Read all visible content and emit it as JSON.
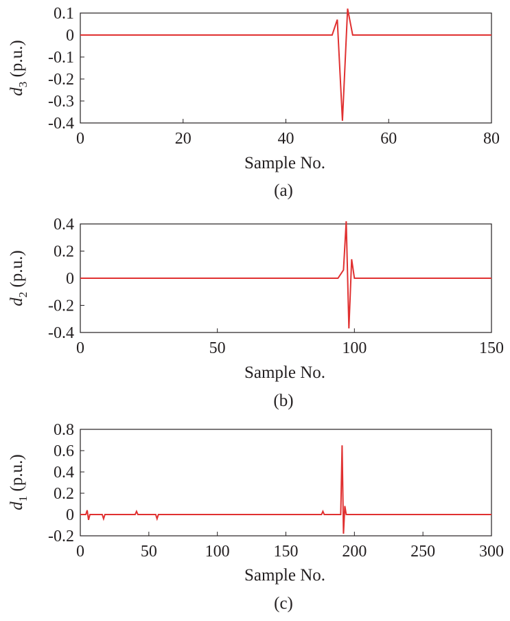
{
  "chart_data": [
    {
      "type": "line",
      "panel": "(a)",
      "ylabel_symbol": "d",
      "ylabel_subscript": "3",
      "ylabel_unit": " (p.u.)",
      "xlabel": "Sample No.",
      "xlim": [
        0,
        80
      ],
      "ylim": [
        -0.4,
        0.1
      ],
      "xticks": [
        0,
        20,
        40,
        60,
        80
      ],
      "yticks": [
        0.1,
        0,
        -0.1,
        -0.2,
        -0.3,
        -0.4
      ],
      "line_color": "#e03030",
      "x": [
        0,
        49,
        50,
        51,
        52,
        53,
        80
      ],
      "y": [
        0,
        0,
        0.07,
        -0.39,
        0.12,
        0,
        0
      ]
    },
    {
      "type": "line",
      "panel": "(b)",
      "ylabel_symbol": "d",
      "ylabel_subscript": "2",
      "ylabel_unit": " (p.u.)",
      "xlabel": "Sample No.",
      "xlim": [
        0,
        150
      ],
      "ylim": [
        -0.4,
        0.4
      ],
      "xticks": [
        0,
        50,
        100,
        150
      ],
      "yticks": [
        0.4,
        0.2,
        0,
        -0.2,
        -0.4
      ],
      "line_color": "#e03030",
      "x": [
        0,
        94,
        96,
        97,
        98,
        99,
        100,
        150
      ],
      "y": [
        0,
        0,
        0.06,
        0.42,
        -0.37,
        0.14,
        0,
        0
      ]
    },
    {
      "type": "line",
      "panel": "(c)",
      "ylabel_symbol": "d",
      "ylabel_subscript": "1",
      "ylabel_unit": " (p.u.)",
      "xlabel": "Sample No.",
      "xlim": [
        0,
        300
      ],
      "ylim": [
        -0.2,
        0.8
      ],
      "xticks": [
        0,
        50,
        100,
        150,
        200,
        250,
        300
      ],
      "yticks": [
        0.8,
        0.6,
        0.4,
        0.2,
        0,
        -0.2
      ],
      "line_color": "#e03030",
      "x": [
        0,
        4,
        5,
        6,
        7,
        16,
        17,
        18,
        40,
        41,
        42,
        55,
        56,
        57,
        176,
        177,
        178,
        190,
        191,
        192,
        193,
        194,
        300
      ],
      "y": [
        0,
        0,
        0.04,
        -0.05,
        0,
        0,
        -0.04,
        0,
        0,
        0.03,
        0,
        0,
        -0.04,
        0,
        0,
        0.03,
        0,
        0,
        0.65,
        -0.18,
        0.08,
        0,
        0
      ]
    }
  ]
}
